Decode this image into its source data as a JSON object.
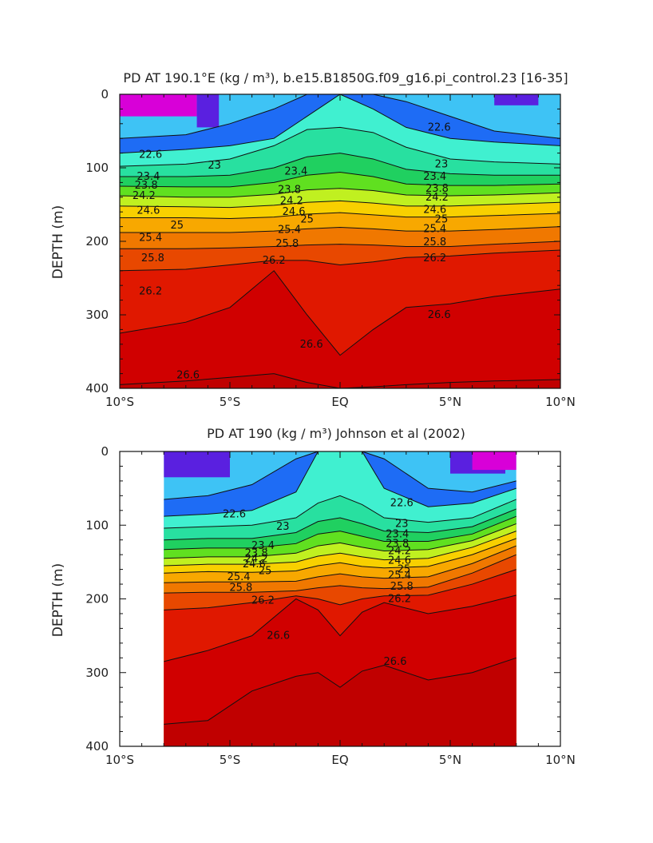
{
  "chart_data": [
    {
      "type": "heatmap",
      "title": "PD AT 190.1°E (kg / m³), b.e15.B1850G.f09_g16.pi_control.23 [16-35]",
      "ylabel": "DEPTH (m)",
      "xlabel": "",
      "xlim": [
        -10,
        10
      ],
      "ylim": [
        400,
        0
      ],
      "data_xlim": [
        -10,
        10
      ],
      "x_ticks": [
        {
          "value": -10,
          "label": "10°S"
        },
        {
          "value": -5,
          "label": "5°S"
        },
        {
          "value": 0,
          "label": "EQ"
        },
        {
          "value": 5,
          "label": "5°N"
        },
        {
          "value": 10,
          "label": "10°N"
        }
      ],
      "y_ticks": [
        {
          "value": 0,
          "label": "0"
        },
        {
          "value": 100,
          "label": "100"
        },
        {
          "value": 200,
          "label": "200"
        },
        {
          "value": 300,
          "label": "300"
        },
        {
          "value": 400,
          "label": "400"
        }
      ],
      "colorscale": [
        "#d800d8",
        "#9a1ad8",
        "#5a20e0",
        "#0c3cf0",
        "#1e6cf5",
        "#2a97f2",
        "#3ec3f5",
        "#52e5f8",
        "#40f0d0",
        "#28e0a0",
        "#20d060",
        "#60e020",
        "#c0f020",
        "#f8f800",
        "#f8d000",
        "#f8a800",
        "#f07800",
        "#e84800",
        "#e01800",
        "#d00000",
        "#c00000"
      ],
      "contour_levels": [
        22.6,
        23,
        23.4,
        23.8,
        24.2,
        24.6,
        25,
        25.4,
        25.8,
        26.2,
        26.6
      ],
      "isopycnal_depths": {
        "x": [
          -10,
          -7,
          -5,
          -3,
          -1.5,
          0,
          1.5,
          3,
          5,
          7,
          10
        ],
        "levels": [
          {
            "value": 22.2,
            "depths": [
              60,
              55,
              40,
              20,
              0,
              0,
              0,
              10,
              30,
              50,
              60
            ]
          },
          {
            "value": 22.6,
            "depths": [
              80,
              75,
              70,
              60,
              30,
              0,
              20,
              45,
              60,
              65,
              70
            ]
          },
          {
            "value": 23,
            "depths": [
              98,
              95,
              88,
              70,
              48,
              45,
              52,
              72,
              88,
              92,
              95
            ]
          },
          {
            "value": 23.4,
            "depths": [
              112,
              112,
              110,
              100,
              85,
              80,
              88,
              102,
              108,
              110,
              110
            ]
          },
          {
            "value": 23.8,
            "depths": [
              125,
              126,
              126,
              120,
              110,
              106,
              112,
              122,
              124,
              124,
              122
            ]
          },
          {
            "value": 24.2,
            "depths": [
              138,
              140,
              140,
              136,
              130,
              128,
              131,
              137,
              138,
              137,
              134
            ]
          },
          {
            "value": 24.6,
            "depths": [
              152,
              153,
              154,
              151,
              147,
              145,
              148,
              152,
              152,
              150,
              147
            ]
          },
          {
            "value": 25,
            "depths": [
              168,
              168,
              169,
              167,
              163,
              161,
              164,
              167,
              167,
              165,
              162
            ]
          },
          {
            "value": 25.4,
            "depths": [
              188,
              188,
              188,
              186,
              183,
              181,
              183,
              186,
              186,
              184,
              180
            ]
          },
          {
            "value": 25.8,
            "depths": [
              210,
              210,
              209,
              207,
              205,
              204,
              205,
              207,
              207,
              204,
              200
            ]
          },
          {
            "value": 26.2,
            "depths": [
              240,
              238,
              232,
              226,
              226,
              232,
              228,
              222,
              220,
              216,
              212
            ]
          },
          {
            "value": 26.6,
            "depths": [
              325,
              310,
              290,
              240,
              300,
              355,
              320,
              290,
              285,
              275,
              265
            ]
          },
          {
            "value": 26.8,
            "depths": [
              395,
              390,
              385,
              380,
              392,
              400,
              398,
              395,
              392,
              390,
              388
            ]
          }
        ]
      },
      "labels": [
        {
          "text": "22.6",
          "x": -8.6,
          "y": 82
        },
        {
          "text": "23",
          "x": -5.7,
          "y": 97
        },
        {
          "text": "23.4",
          "x": -8.7,
          "y": 112
        },
        {
          "text": "23.8",
          "x": -8.8,
          "y": 124
        },
        {
          "text": "24.2",
          "x": -8.9,
          "y": 138
        },
        {
          "text": "24.6",
          "x": -8.7,
          "y": 158
        },
        {
          "text": "25",
          "x": -7.4,
          "y": 178
        },
        {
          "text": "25.4",
          "x": -8.6,
          "y": 195
        },
        {
          "text": "25.8",
          "x": -8.5,
          "y": 223
        },
        {
          "text": "26.2",
          "x": -8.6,
          "y": 268
        },
        {
          "text": "26.6",
          "x": -6.9,
          "y": 382
        },
        {
          "text": "23.4",
          "x": -2.0,
          "y": 105
        },
        {
          "text": "23.8",
          "x": -2.3,
          "y": 130
        },
        {
          "text": "24.2",
          "x": -2.2,
          "y": 145
        },
        {
          "text": "24.6",
          "x": -2.1,
          "y": 160
        },
        {
          "text": "25",
          "x": -1.5,
          "y": 170
        },
        {
          "text": "25.4",
          "x": -2.3,
          "y": 184
        },
        {
          "text": "25.8",
          "x": -2.4,
          "y": 203
        },
        {
          "text": "26.2",
          "x": -3.0,
          "y": 226
        },
        {
          "text": "26.6",
          "x": -1.3,
          "y": 340
        },
        {
          "text": "22.6",
          "x": 4.5,
          "y": 45
        },
        {
          "text": "23",
          "x": 4.6,
          "y": 95
        },
        {
          "text": "23.4",
          "x": 4.3,
          "y": 112
        },
        {
          "text": "23.8",
          "x": 4.4,
          "y": 128
        },
        {
          "text": "24.2",
          "x": 4.4,
          "y": 140
        },
        {
          "text": "24.6",
          "x": 4.3,
          "y": 157
        },
        {
          "text": "25",
          "x": 4.6,
          "y": 170
        },
        {
          "text": "25.4",
          "x": 4.3,
          "y": 183
        },
        {
          "text": "25.8",
          "x": 4.3,
          "y": 201
        },
        {
          "text": "26.2",
          "x": 4.3,
          "y": 223
        },
        {
          "text": "26.6",
          "x": 4.5,
          "y": 300
        }
      ]
    },
    {
      "type": "heatmap",
      "title": "PD AT 190 (kg / m³) Johnson et al (2002)",
      "ylabel": "DEPTH (m)",
      "xlabel": "",
      "xlim": [
        -10,
        10
      ],
      "ylim": [
        400,
        0
      ],
      "data_xlim": [
        -8,
        8
      ],
      "x_ticks": [
        {
          "value": -10,
          "label": "10°S"
        },
        {
          "value": -5,
          "label": "5°S"
        },
        {
          "value": 0,
          "label": "EQ"
        },
        {
          "value": 5,
          "label": "5°N"
        },
        {
          "value": 10,
          "label": "10°N"
        }
      ],
      "y_ticks": [
        {
          "value": 0,
          "label": "0"
        },
        {
          "value": 100,
          "label": "100"
        },
        {
          "value": 200,
          "label": "200"
        },
        {
          "value": 300,
          "label": "300"
        },
        {
          "value": 400,
          "label": "400"
        }
      ],
      "colorscale": [
        "#d800d8",
        "#9a1ad8",
        "#5a20e0",
        "#0c3cf0",
        "#1e6cf5",
        "#2a97f2",
        "#3ec3f5",
        "#52e5f8",
        "#40f0d0",
        "#28e0a0",
        "#20d060",
        "#60e020",
        "#c0f020",
        "#f8f800",
        "#f8d000",
        "#f8a800",
        "#f07800",
        "#e84800",
        "#e01800",
        "#d00000",
        "#c00000"
      ],
      "contour_levels": [
        22.6,
        23,
        23.4,
        23.8,
        24.2,
        24.6,
        25,
        25.4,
        25.8,
        26.2,
        26.6
      ],
      "isopycnal_depths": {
        "x": [
          -8,
          -6,
          -4,
          -2,
          -1,
          0,
          1,
          2,
          4,
          6,
          8
        ],
        "levels": [
          {
            "value": 22.2,
            "depths": [
              65,
              60,
              45,
              10,
              0,
              0,
              0,
              10,
              50,
              55,
              40
            ]
          },
          {
            "value": 22.6,
            "depths": [
              88,
              85,
              80,
              55,
              0,
              0,
              0,
              50,
              75,
              70,
              50
            ]
          },
          {
            "value": 23,
            "depths": [
              104,
              102,
              100,
              90,
              70,
              60,
              72,
              90,
              96,
              90,
              65
            ]
          },
          {
            "value": 23.4,
            "depths": [
              120,
              118,
              118,
              110,
              95,
              90,
              98,
              108,
              110,
              102,
              78
            ]
          },
          {
            "value": 23.8,
            "depths": [
              133,
              131,
              131,
              125,
              112,
              108,
              115,
              122,
              122,
              112,
              88
            ]
          },
          {
            "value": 24.2,
            "depths": [
              145,
              143,
              143,
              138,
              128,
              124,
              130,
              135,
              133,
              121,
              98
            ]
          },
          {
            "value": 24.6,
            "depths": [
              155,
              153,
              153,
              150,
              142,
              138,
              143,
              147,
              145,
              130,
              108
            ]
          },
          {
            "value": 25,
            "depths": [
              165,
              163,
              164,
              162,
              155,
              151,
              156,
              158,
              156,
              140,
              118
            ]
          },
          {
            "value": 25.4,
            "depths": [
              178,
              177,
              177,
              176,
              170,
              166,
              170,
              172,
              170,
              152,
              128
            ]
          },
          {
            "value": 25.8,
            "depths": [
              192,
              191,
              191,
              189,
              185,
              182,
              185,
              186,
              184,
              165,
              140
            ]
          },
          {
            "value": 26.2,
            "depths": [
              215,
              212,
              205,
              196,
              200,
              208,
              200,
              196,
              195,
              180,
              160
            ]
          },
          {
            "value": 26.6,
            "depths": [
              285,
              270,
              250,
              200,
              215,
              250,
              218,
              205,
              220,
              210,
              195
            ]
          },
          {
            "value": 26.8,
            "depths": [
              370,
              365,
              325,
              305,
              300,
              320,
              298,
              290,
              310,
              300,
              280
            ]
          }
        ]
      },
      "labels": [
        {
          "text": "22.6",
          "x": -4.8,
          "y": 85
        },
        {
          "text": "23",
          "x": -2.6,
          "y": 102
        },
        {
          "text": "23.4",
          "x": -3.5,
          "y": 128
        },
        {
          "text": "23.8",
          "x": -3.8,
          "y": 138
        },
        {
          "text": "24.2",
          "x": -3.8,
          "y": 146
        },
        {
          "text": "24.6",
          "x": -3.9,
          "y": 153
        },
        {
          "text": "25",
          "x": -3.4,
          "y": 162
        },
        {
          "text": "25.4",
          "x": -4.6,
          "y": 170
        },
        {
          "text": "25.8",
          "x": -4.5,
          "y": 185
        },
        {
          "text": "26.2",
          "x": -3.5,
          "y": 202
        },
        {
          "text": "26.6",
          "x": -2.8,
          "y": 250
        },
        {
          "text": "22.6",
          "x": 2.8,
          "y": 70
        },
        {
          "text": "23",
          "x": 2.8,
          "y": 98
        },
        {
          "text": "23.4",
          "x": 2.6,
          "y": 112
        },
        {
          "text": "23.8",
          "x": 2.6,
          "y": 125
        },
        {
          "text": "24.2",
          "x": 2.7,
          "y": 135
        },
        {
          "text": "24.6",
          "x": 2.7,
          "y": 148
        },
        {
          "text": "25",
          "x": 2.9,
          "y": 160
        },
        {
          "text": "25.4",
          "x": 2.7,
          "y": 168
        },
        {
          "text": "25.8",
          "x": 2.8,
          "y": 183
        },
        {
          "text": "26.2",
          "x": 2.7,
          "y": 200
        },
        {
          "text": "26.6",
          "x": 2.5,
          "y": 285
        }
      ]
    }
  ]
}
